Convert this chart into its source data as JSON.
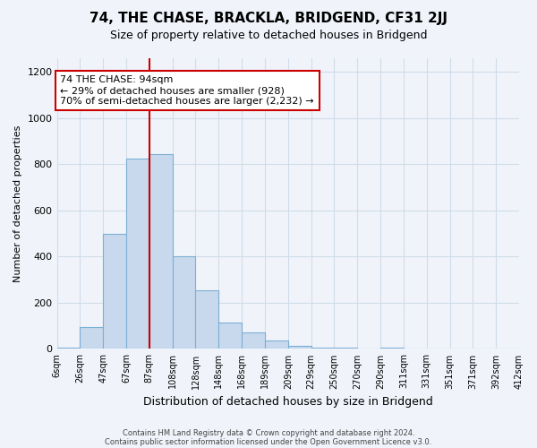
{
  "title": "74, THE CHASE, BRACKLA, BRIDGEND, CF31 2JJ",
  "subtitle": "Size of property relative to detached houses in Bridgend",
  "xlabel": "Distribution of detached houses by size in Bridgend",
  "ylabel": "Number of detached properties",
  "bin_edges_labels": [
    "6sqm",
    "26sqm",
    "47sqm",
    "67sqm",
    "87sqm",
    "108sqm",
    "128sqm",
    "148sqm",
    "168sqm",
    "189sqm",
    "209sqm",
    "229sqm",
    "250sqm",
    "270sqm",
    "290sqm",
    "311sqm",
    "331sqm",
    "351sqm",
    "371sqm",
    "392sqm",
    "412sqm"
  ],
  "bar_values": [
    5,
    95,
    500,
    825,
    845,
    400,
    255,
    115,
    70,
    35,
    15,
    5,
    5,
    1,
    5,
    1,
    1,
    1,
    1,
    1
  ],
  "bar_color": "#c8d9ee",
  "bar_edge_color": "#7bafd4",
  "vline_x": 4,
  "vline_color": "#cc0000",
  "ylim": [
    0,
    1260
  ],
  "yticks": [
    0,
    200,
    400,
    600,
    800,
    1000,
    1200
  ],
  "annotation_title": "74 THE CHASE: 94sqm",
  "annotation_line1": "← 29% of detached houses are smaller (928)",
  "annotation_line2": "70% of semi-detached houses are larger (2,232) →",
  "annotation_box_color": "#ffffff",
  "annotation_box_edge": "#cc0000",
  "grid_color": "#d0dce8",
  "bg_color": "#f0f4fa",
  "footer1": "Contains HM Land Registry data © Crown copyright and database right 2024.",
  "footer2": "Contains public sector information licensed under the Open Government Licence v3.0."
}
